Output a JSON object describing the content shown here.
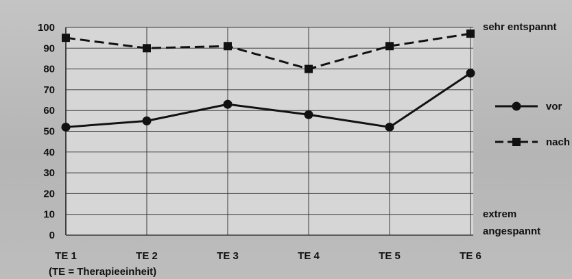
{
  "chart_data": {
    "type": "line",
    "categories": [
      "TE 1",
      "TE 2",
      "TE 3",
      "TE 4",
      "TE 5",
      "TE 6"
    ],
    "x_note": "(TE = Therapieeinheit)",
    "ylim": [
      0,
      100
    ],
    "yticks": [
      0,
      10,
      20,
      30,
      40,
      50,
      60,
      70,
      80,
      90,
      100
    ],
    "grid": true,
    "series": [
      {
        "name": "vor",
        "style": "solid",
        "marker": "circle",
        "color": "#111111",
        "values": [
          52,
          55,
          63,
          58,
          52,
          78
        ]
      },
      {
        "name": "nach",
        "style": "dashed",
        "marker": "square",
        "color": "#111111",
        "values": [
          95,
          90,
          91,
          80,
          91,
          97
        ]
      }
    ],
    "annotations": {
      "top": "sehr entspannt",
      "bottom_line1": "extrem",
      "bottom_line2": "angespannt"
    },
    "legend_placement": "right"
  }
}
